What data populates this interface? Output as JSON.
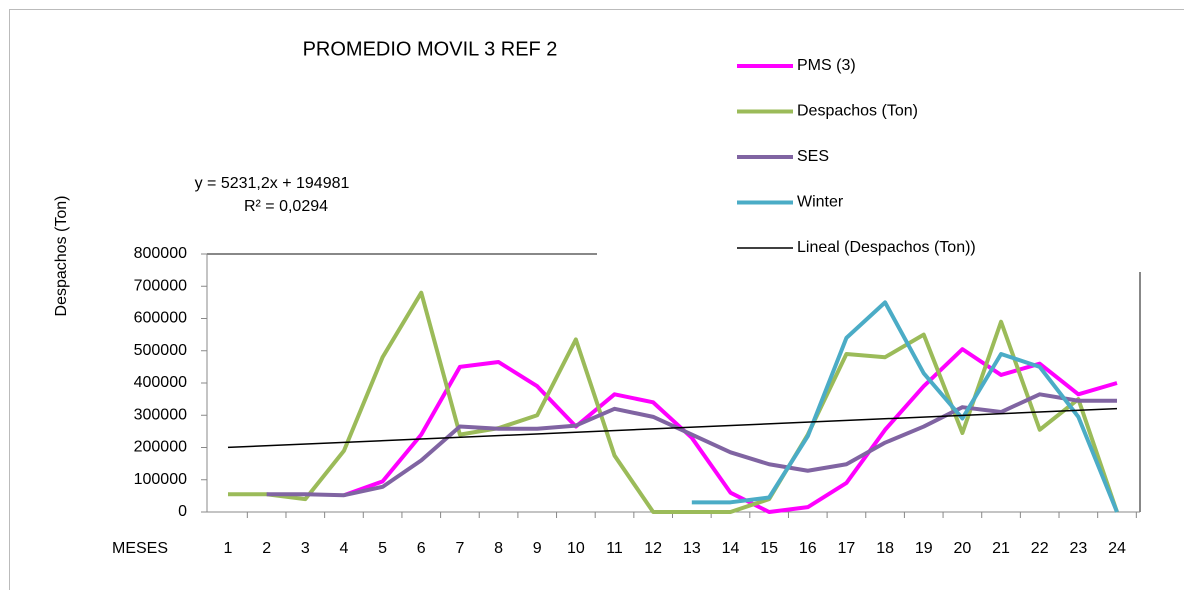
{
  "chart_data": {
    "type": "line",
    "title": "PROMEDIO MOVIL 3 REF 2",
    "x_label": "MESES",
    "y_label": "Despachos (Ton)",
    "annotations": [
      "y = 5231,2x + 194981",
      "R² = 0,0294"
    ],
    "categories": [
      "1",
      "2",
      "3",
      "4",
      "5",
      "6",
      "7",
      "8",
      "9",
      "10",
      "11",
      "12",
      "13",
      "14",
      "15",
      "16",
      "17",
      "18",
      "19",
      "20",
      "21",
      "22",
      "23",
      "24"
    ],
    "ylim": [
      0,
      800000
    ],
    "yticks": [
      0,
      100000,
      200000,
      300000,
      400000,
      500000,
      600000,
      700000,
      800000
    ],
    "series": [
      {
        "name": "PMS (3)",
        "color": "#ff00ff",
        "values": [
          null,
          null,
          null,
          52000,
          95000,
          240000,
          450000,
          465000,
          390000,
          265000,
          365000,
          340000,
          230000,
          60000,
          0,
          15000,
          90000,
          255000,
          390000,
          505000,
          425000,
          460000,
          365000,
          400000
        ]
      },
      {
        "name": "Despachos (Ton)",
        "color": "#9bbb59",
        "values": [
          55000,
          55000,
          40000,
          190000,
          480000,
          680000,
          240000,
          260000,
          300000,
          535000,
          175000,
          0,
          0,
          0,
          40000,
          240000,
          490000,
          480000,
          550000,
          245000,
          590000,
          255000,
          350000,
          0
        ]
      },
      {
        "name": "SES",
        "color": "#8064a2",
        "values": [
          null,
          55000,
          55000,
          52000,
          78000,
          160000,
          265000,
          258000,
          258000,
          268000,
          320000,
          295000,
          240000,
          185000,
          148000,
          128000,
          148000,
          215000,
          265000,
          325000,
          310000,
          365000,
          345000,
          345000
        ]
      },
      {
        "name": "Winter",
        "color": "#4bacc6",
        "values": [
          null,
          null,
          null,
          null,
          null,
          null,
          null,
          null,
          null,
          null,
          null,
          null,
          30000,
          30000,
          45000,
          235000,
          540000,
          650000,
          430000,
          290000,
          490000,
          450000,
          295000,
          0
        ]
      }
    ],
    "trendline": {
      "name": "Lineal (Despachos (Ton))",
      "color": "#000000",
      "x": [
        1,
        24
      ],
      "values": [
        200212,
        320530
      ]
    }
  }
}
